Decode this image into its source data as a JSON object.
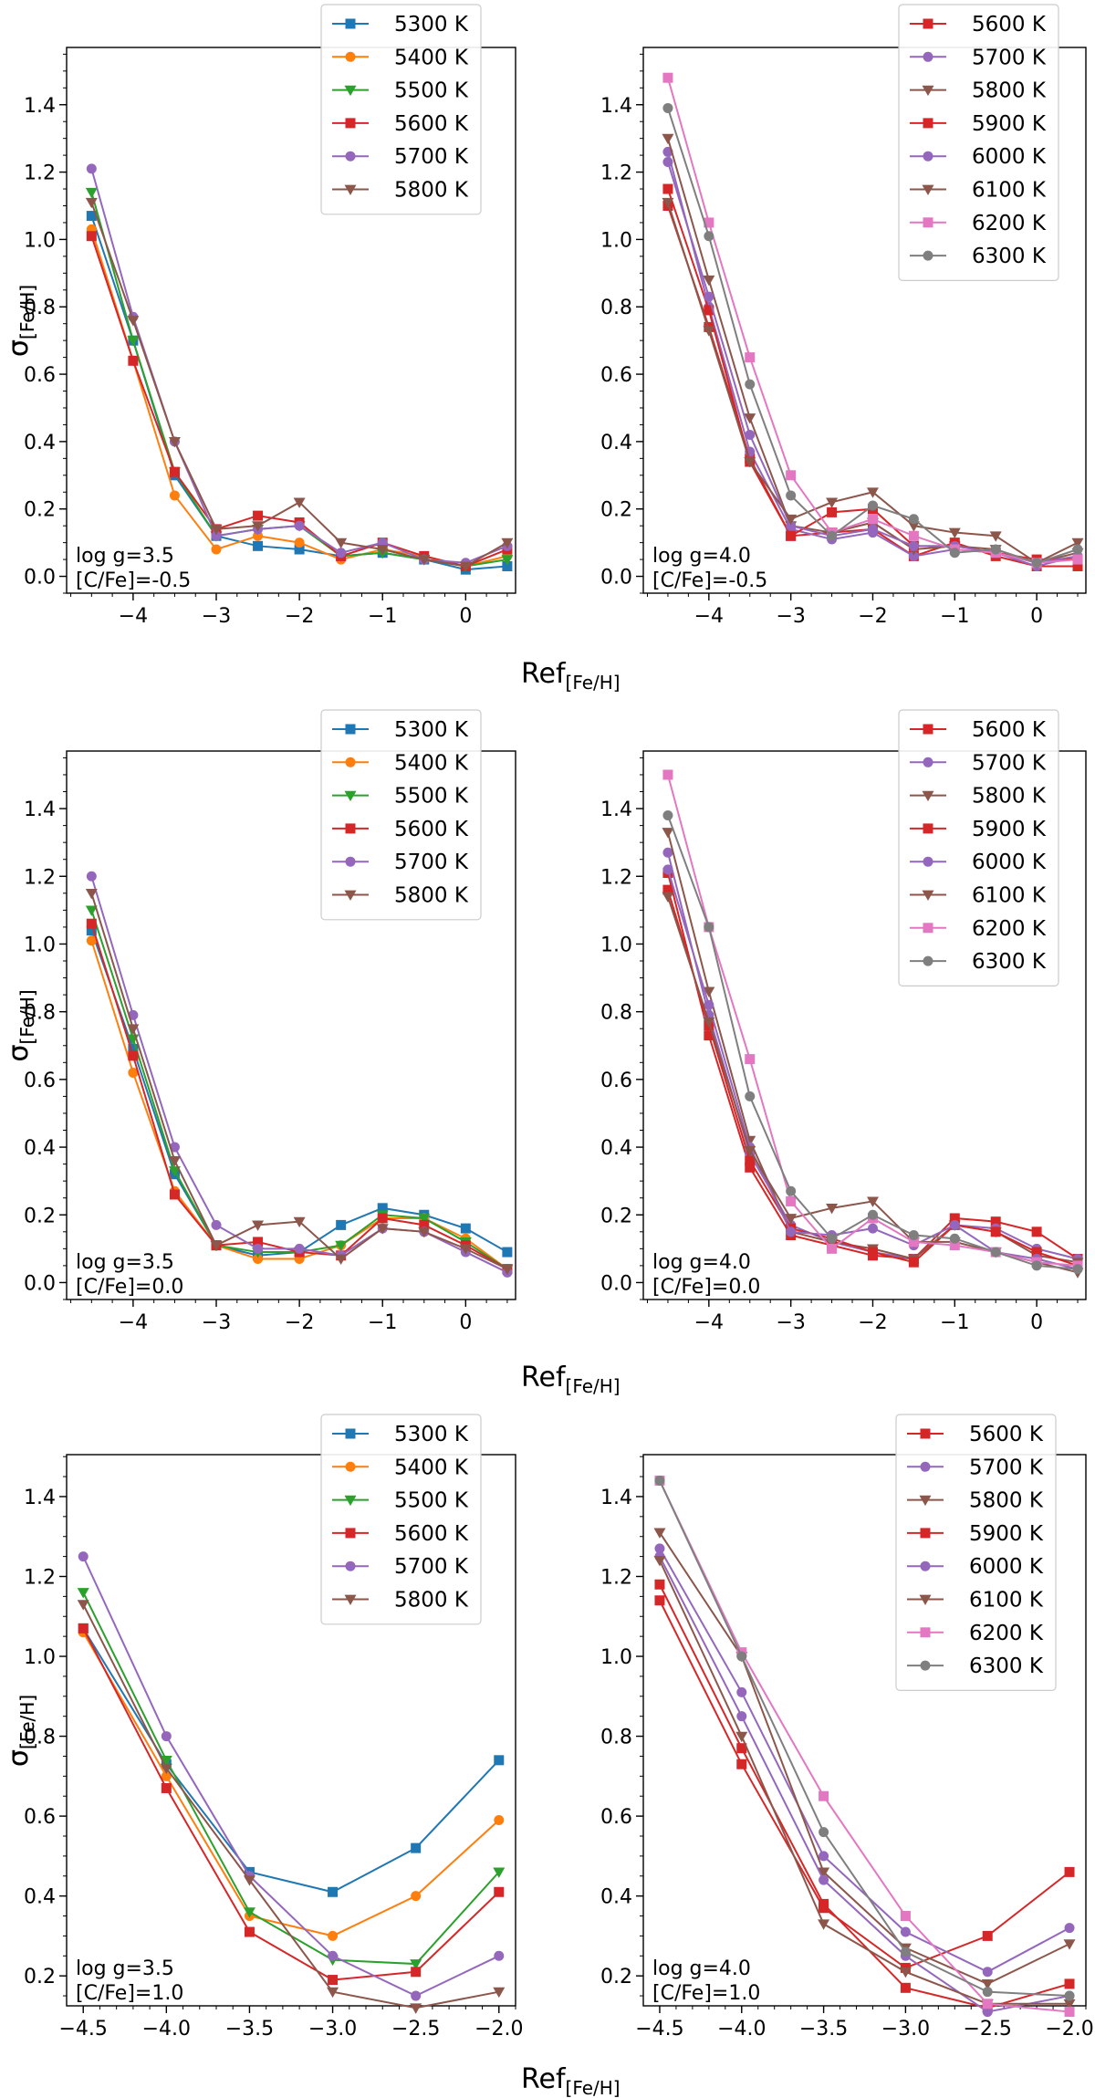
{
  "series_colors": {
    "5300 K": "#1f77b4",
    "5400 K": "#ff7f0e",
    "5500 K": "#2ca02c",
    "5600 K": "#d62728",
    "5700 K": "#9467bd",
    "5800 K": "#8c564b",
    "5900 K": "#d62728",
    "6000 K": "#9467bd",
    "6100 K": "#8c564b",
    "6200 K": "#e377c2",
    "6300 K": "#7f7f7f"
  },
  "x_axis_label": "Ref",
  "x_axis_sub": "[Fe/H]",
  "y_axis_label": "σ",
  "y_axis_sub": "[Fe/H]",
  "chart_data": [
    {
      "type": "line",
      "annotation": [
        "log g=3.5",
        "[C/Fe]=-0.5"
      ],
      "xlim": [
        -4.8,
        0.6
      ],
      "ylim": [
        -0.05,
        1.57
      ],
      "xticks": [
        -4,
        -3,
        -2,
        -1,
        0
      ],
      "xtick_labels": [
        "−4",
        "−3",
        "−2",
        "−1",
        "0"
      ],
      "yticks": [
        0.0,
        0.2,
        0.4,
        0.6,
        0.8,
        1.0,
        1.2,
        1.4
      ],
      "ytick_labels": [
        "0.0",
        "0.2",
        "0.4",
        "0.6",
        "0.8",
        "1.0",
        "1.2",
        "1.4"
      ],
      "x": [
        -4.5,
        -4.0,
        -3.5,
        -3.0,
        -2.5,
        -2.0,
        -1.5,
        -1.0,
        -0.5,
        0.0,
        0.5
      ],
      "series": [
        {
          "name": "5300 K",
          "marker": "square",
          "values": [
            1.07,
            0.7,
            0.3,
            0.12,
            0.09,
            0.08,
            0.06,
            0.07,
            0.05,
            0.02,
            0.03
          ]
        },
        {
          "name": "5400 K",
          "marker": "circle",
          "values": [
            1.03,
            0.64,
            0.24,
            0.08,
            0.12,
            0.1,
            0.05,
            0.08,
            0.06,
            0.03,
            0.06
          ]
        },
        {
          "name": "5500 K",
          "marker": "triangle",
          "values": [
            1.14,
            0.7,
            0.31,
            0.12,
            0.14,
            0.15,
            0.06,
            0.07,
            0.05,
            0.03,
            0.05
          ]
        },
        {
          "name": "5600 K",
          "marker": "square",
          "values": [
            1.01,
            0.64,
            0.31,
            0.14,
            0.18,
            0.16,
            0.06,
            0.1,
            0.06,
            0.03,
            0.08
          ]
        },
        {
          "name": "5700 K",
          "marker": "circle",
          "values": [
            1.21,
            0.77,
            0.4,
            0.12,
            0.14,
            0.15,
            0.07,
            0.1,
            0.05,
            0.04,
            0.09
          ]
        },
        {
          "name": "5800 K",
          "marker": "triangle",
          "values": [
            1.11,
            0.76,
            0.4,
            0.14,
            0.15,
            0.22,
            0.1,
            0.08,
            0.05,
            0.03,
            0.1
          ]
        }
      ]
    },
    {
      "type": "line",
      "annotation": [
        "log g=4.0",
        "[C/Fe]=-0.5"
      ],
      "xlim": [
        -4.8,
        0.6
      ],
      "ylim": [
        -0.05,
        1.57
      ],
      "xticks": [
        -4,
        -3,
        -2,
        -1,
        0
      ],
      "xtick_labels": [
        "−4",
        "−3",
        "−2",
        "−1",
        "0"
      ],
      "yticks": [
        0.0,
        0.2,
        0.4,
        0.6,
        0.8,
        1.0,
        1.2,
        1.4
      ],
      "ytick_labels": [
        "0.0",
        "0.2",
        "0.4",
        "0.6",
        "0.8",
        "1.0",
        "1.2",
        "1.4"
      ],
      "x": [
        -4.5,
        -4.0,
        -3.5,
        -3.0,
        -2.5,
        -2.0,
        -1.5,
        -1.0,
        -0.5,
        0.0,
        0.5
      ],
      "series": [
        {
          "name": "5600 K",
          "marker": "square",
          "values": [
            1.1,
            0.74,
            0.35,
            0.12,
            0.13,
            0.14,
            0.06,
            0.1,
            0.06,
            0.03,
            0.03
          ]
        },
        {
          "name": "5700 K",
          "marker": "circle",
          "values": [
            1.26,
            0.8,
            0.37,
            0.14,
            0.11,
            0.13,
            0.06,
            0.08,
            0.07,
            0.03,
            0.06
          ]
        },
        {
          "name": "5800 K",
          "marker": "triangle",
          "values": [
            1.3,
            0.88,
            0.47,
            0.15,
            0.13,
            0.16,
            0.08,
            0.09,
            0.08,
            0.04,
            0.07
          ]
        },
        {
          "name": "5900 K",
          "marker": "square",
          "values": [
            1.15,
            0.79,
            0.34,
            0.12,
            0.19,
            0.2,
            0.09,
            0.09,
            0.07,
            0.05,
            0.05
          ]
        },
        {
          "name": "6000 K",
          "marker": "circle",
          "values": [
            1.23,
            0.83,
            0.42,
            0.15,
            0.12,
            0.14,
            0.09,
            0.09,
            0.07,
            0.04,
            0.06
          ]
        },
        {
          "name": "6100 K",
          "marker": "triangle",
          "values": [
            1.11,
            0.73,
            0.34,
            0.17,
            0.22,
            0.25,
            0.15,
            0.13,
            0.12,
            0.04,
            0.1
          ]
        },
        {
          "name": "6200 K",
          "marker": "square",
          "values": [
            1.48,
            1.05,
            0.65,
            0.3,
            0.13,
            0.17,
            0.12,
            0.08,
            0.07,
            0.04,
            0.05
          ]
        },
        {
          "name": "6300 K",
          "marker": "circle",
          "values": [
            1.39,
            1.01,
            0.57,
            0.24,
            0.12,
            0.21,
            0.17,
            0.07,
            0.08,
            0.04,
            0.08
          ]
        }
      ]
    },
    {
      "type": "line",
      "annotation": [
        "log g=3.5",
        "[C/Fe]=0.0"
      ],
      "xlim": [
        -4.8,
        0.6
      ],
      "ylim": [
        -0.05,
        1.57
      ],
      "xticks": [
        -4,
        -3,
        -2,
        -1,
        0
      ],
      "xtick_labels": [
        "−4",
        "−3",
        "−2",
        "−1",
        "0"
      ],
      "yticks": [
        0.0,
        0.2,
        0.4,
        0.6,
        0.8,
        1.0,
        1.2,
        1.4
      ],
      "ytick_labels": [
        "0.0",
        "0.2",
        "0.4",
        "0.6",
        "0.8",
        "1.0",
        "1.2",
        "1.4"
      ],
      "x": [
        -4.5,
        -4.0,
        -3.5,
        -3.0,
        -2.5,
        -2.0,
        -1.5,
        -1.0,
        -0.5,
        0.0,
        0.5
      ],
      "series": [
        {
          "name": "5300 K",
          "marker": "square",
          "values": [
            1.04,
            0.69,
            0.32,
            0.11,
            0.08,
            0.09,
            0.17,
            0.22,
            0.2,
            0.16,
            0.09
          ]
        },
        {
          "name": "5400 K",
          "marker": "circle",
          "values": [
            1.01,
            0.62,
            0.27,
            0.11,
            0.07,
            0.07,
            0.11,
            0.19,
            0.19,
            0.13,
            0.04
          ]
        },
        {
          "name": "5500 K",
          "marker": "triangle",
          "values": [
            1.1,
            0.72,
            0.33,
            0.11,
            0.09,
            0.09,
            0.11,
            0.2,
            0.19,
            0.12,
            0.04
          ]
        },
        {
          "name": "5600 K",
          "marker": "square",
          "values": [
            1.06,
            0.67,
            0.26,
            0.11,
            0.12,
            0.09,
            0.08,
            0.19,
            0.17,
            0.11,
            0.04
          ]
        },
        {
          "name": "5700 K",
          "marker": "circle",
          "values": [
            1.2,
            0.79,
            0.4,
            0.17,
            0.1,
            0.1,
            0.08,
            0.16,
            0.15,
            0.09,
            0.03
          ]
        },
        {
          "name": "5800 K",
          "marker": "triangle",
          "values": [
            1.15,
            0.75,
            0.36,
            0.11,
            0.17,
            0.18,
            0.07,
            0.16,
            0.15,
            0.1,
            0.04
          ]
        }
      ]
    },
    {
      "type": "line",
      "annotation": [
        "log g=4.0",
        "[C/Fe]=0.0"
      ],
      "xlim": [
        -4.8,
        0.6
      ],
      "ylim": [
        -0.05,
        1.57
      ],
      "xticks": [
        -4,
        -3,
        -2,
        -1,
        0
      ],
      "xtick_labels": [
        "−4",
        "−3",
        "−2",
        "−1",
        "0"
      ],
      "yticks": [
        0.0,
        0.2,
        0.4,
        0.6,
        0.8,
        1.0,
        1.2,
        1.4
      ],
      "ytick_labels": [
        "0.0",
        "0.2",
        "0.4",
        "0.6",
        "0.8",
        "1.0",
        "1.2",
        "1.4"
      ],
      "x": [
        -4.5,
        -4.0,
        -3.5,
        -3.0,
        -2.5,
        -2.0,
        -1.5,
        -1.0,
        -0.5,
        0.0,
        0.5
      ],
      "series": [
        {
          "name": "5600 K",
          "marker": "square",
          "values": [
            1.21,
            0.73,
            0.34,
            0.14,
            0.11,
            0.08,
            0.07,
            0.19,
            0.18,
            0.15,
            0.07
          ]
        },
        {
          "name": "5700 K",
          "marker": "circle",
          "values": [
            1.27,
            0.79,
            0.38,
            0.17,
            0.12,
            0.09,
            0.07,
            0.17,
            0.16,
            0.1,
            0.07
          ]
        },
        {
          "name": "5800 K",
          "marker": "triangle",
          "values": [
            1.33,
            0.86,
            0.42,
            0.15,
            0.12,
            0.1,
            0.07,
            0.17,
            0.15,
            0.08,
            0.06
          ]
        },
        {
          "name": "5900 K",
          "marker": "square",
          "values": [
            1.16,
            0.76,
            0.36,
            0.16,
            0.13,
            0.09,
            0.06,
            0.17,
            0.15,
            0.09,
            0.05
          ]
        },
        {
          "name": "6000 K",
          "marker": "circle",
          "values": [
            1.22,
            0.82,
            0.4,
            0.15,
            0.14,
            0.16,
            0.11,
            0.17,
            0.09,
            0.07,
            0.04
          ]
        },
        {
          "name": "6100 K",
          "marker": "triangle",
          "values": [
            1.14,
            0.77,
            0.39,
            0.19,
            0.22,
            0.24,
            0.12,
            0.12,
            0.09,
            0.06,
            0.03
          ]
        },
        {
          "name": "6200 K",
          "marker": "square",
          "values": [
            1.5,
            1.05,
            0.66,
            0.24,
            0.1,
            0.19,
            0.12,
            0.11,
            0.09,
            0.06,
            0.05
          ]
        },
        {
          "name": "6300 K",
          "marker": "circle",
          "values": [
            1.38,
            1.05,
            0.55,
            0.27,
            0.13,
            0.2,
            0.14,
            0.13,
            0.09,
            0.05,
            0.04
          ]
        }
      ]
    },
    {
      "type": "line",
      "annotation": [
        "log g=3.5",
        "[C/Fe]=1.0"
      ],
      "xlim": [
        -4.6,
        -1.9
      ],
      "ylim": [
        0.125,
        1.505
      ],
      "xticks": [
        -4.5,
        -4.0,
        -3.5,
        -3.0,
        -2.5,
        -2.0
      ],
      "xtick_labels": [
        "−4.5",
        "−4.0",
        "−3.5",
        "−3.0",
        "−2.5",
        "−2.0"
      ],
      "yticks": [
        0.2,
        0.4,
        0.6,
        0.8,
        1.0,
        1.2,
        1.4
      ],
      "ytick_labels": [
        "0.2",
        "0.4",
        "0.6",
        "0.8",
        "1.0",
        "1.2",
        "1.4"
      ],
      "x": [
        -4.5,
        -4.0,
        -3.5,
        -3.0,
        -2.5,
        -2.0
      ],
      "series": [
        {
          "name": "5300 K",
          "marker": "square",
          "values": [
            1.07,
            0.73,
            0.46,
            0.41,
            0.52,
            0.74
          ]
        },
        {
          "name": "5400 K",
          "marker": "circle",
          "values": [
            1.06,
            0.7,
            0.35,
            0.3,
            0.4,
            0.59
          ]
        },
        {
          "name": "5500 K",
          "marker": "triangle",
          "values": [
            1.16,
            0.74,
            0.36,
            0.24,
            0.23,
            0.46
          ]
        },
        {
          "name": "5600 K",
          "marker": "square",
          "values": [
            1.07,
            0.67,
            0.31,
            0.19,
            0.21,
            0.41
          ]
        },
        {
          "name": "5700 K",
          "marker": "circle",
          "values": [
            1.25,
            0.8,
            0.45,
            0.25,
            0.15,
            0.25
          ]
        },
        {
          "name": "5800 K",
          "marker": "triangle",
          "values": [
            1.13,
            0.72,
            0.44,
            0.16,
            0.12,
            0.16
          ]
        }
      ]
    },
    {
      "type": "line",
      "annotation": [
        "log g=4.0",
        "[C/Fe]=1.0"
      ],
      "xlim": [
        -4.6,
        -1.9
      ],
      "ylim": [
        0.125,
        1.505
      ],
      "xticks": [
        -4.5,
        -4.0,
        -3.5,
        -3.0,
        -2.5,
        -2.0
      ],
      "xtick_labels": [
        "−4.5",
        "−4.0",
        "−3.5",
        "−3.0",
        "−2.5",
        "−2.0"
      ],
      "yticks": [
        0.2,
        0.4,
        0.6,
        0.8,
        1.0,
        1.2,
        1.4
      ],
      "ytick_labels": [
        "0.2",
        "0.4",
        "0.6",
        "0.8",
        "1.0",
        "1.2",
        "1.4"
      ],
      "x": [
        -4.5,
        -4.0,
        -3.5,
        -3.0,
        -2.5,
        -2.0
      ],
      "series": [
        {
          "name": "5600 K",
          "marker": "square",
          "values": [
            1.14,
            0.73,
            0.37,
            0.22,
            0.3,
            0.46
          ]
        },
        {
          "name": "5700 K",
          "marker": "circle",
          "values": [
            1.27,
            0.91,
            0.5,
            0.31,
            0.21,
            0.32
          ]
        },
        {
          "name": "5800 K",
          "marker": "triangle",
          "values": [
            1.31,
            1.0,
            0.46,
            0.27,
            0.18,
            0.28
          ]
        },
        {
          "name": "5900 K",
          "marker": "square",
          "values": [
            1.18,
            0.77,
            0.38,
            0.17,
            0.12,
            0.18
          ]
        },
        {
          "name": "6000 K",
          "marker": "circle",
          "values": [
            1.25,
            0.85,
            0.44,
            0.25,
            0.11,
            0.15
          ]
        },
        {
          "name": "6100 K",
          "marker": "triangle",
          "values": [
            1.24,
            0.8,
            0.33,
            0.21,
            0.13,
            0.13
          ]
        },
        {
          "name": "6200 K",
          "marker": "square",
          "values": [
            1.44,
            1.01,
            0.65,
            0.35,
            0.13,
            0.11
          ]
        },
        {
          "name": "6300 K",
          "marker": "circle",
          "values": [
            1.44,
            1.0,
            0.56,
            0.26,
            0.16,
            0.15
          ]
        }
      ]
    }
  ]
}
